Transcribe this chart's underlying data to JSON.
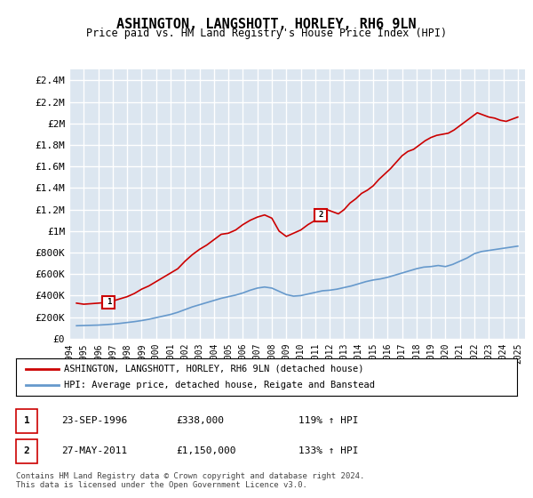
{
  "title": "ASHINGTON, LANGSHOTT, HORLEY, RH6 9LN",
  "subtitle": "Price paid vs. HM Land Registry's House Price Index (HPI)",
  "xlabel": "",
  "ylabel": "",
  "ylim": [
    0,
    2500000
  ],
  "yticks": [
    0,
    200000,
    400000,
    600000,
    800000,
    1000000,
    1200000,
    1400000,
    1600000,
    1800000,
    2000000,
    2200000,
    2400000
  ],
  "ytick_labels": [
    "£0",
    "£200K",
    "£400K",
    "£600K",
    "£800K",
    "£1M",
    "£1.2M",
    "£1.4M",
    "£1.6M",
    "£1.8M",
    "£2M",
    "£2.2M",
    "£2.4M"
  ],
  "xlim_start": 1994.0,
  "xlim_end": 2025.5,
  "bg_color": "#ffffff",
  "plot_bg_color": "#dce6f0",
  "grid_color": "#ffffff",
  "red_line_color": "#cc0000",
  "blue_line_color": "#6699cc",
  "marker1_label": "1",
  "marker2_label": "2",
  "marker1_x": 1996.73,
  "marker1_y": 338000,
  "marker2_x": 2011.4,
  "marker2_y": 1150000,
  "legend_line1": "ASHINGTON, LANGSHOTT, HORLEY, RH6 9LN (detached house)",
  "legend_line2": "HPI: Average price, detached house, Reigate and Banstead",
  "ann1_label": "1",
  "ann1_date": "23-SEP-1996",
  "ann1_price": "£338,000",
  "ann1_hpi": "119% ↑ HPI",
  "ann2_label": "2",
  "ann2_date": "27-MAY-2011",
  "ann2_price": "£1,150,000",
  "ann2_hpi": "133% ↑ HPI",
  "footer": "Contains HM Land Registry data © Crown copyright and database right 2024.\nThis data is licensed under the Open Government Licence v3.0.",
  "red_x": [
    1994.5,
    1995.0,
    1995.5,
    1996.0,
    1996.73,
    1997.5,
    1998.0,
    1998.5,
    1999.0,
    1999.5,
    2000.0,
    2000.5,
    2001.0,
    2001.5,
    2002.0,
    2002.5,
    2003.0,
    2003.5,
    2004.0,
    2004.5,
    2005.0,
    2005.5,
    2006.0,
    2006.5,
    2007.0,
    2007.5,
    2008.0,
    2008.5,
    2009.0,
    2009.5,
    2010.0,
    2010.5,
    2011.0,
    2011.4,
    2011.8,
    2012.2,
    2012.6,
    2013.0,
    2013.4,
    2013.8,
    2014.2,
    2014.6,
    2015.0,
    2015.4,
    2015.8,
    2016.2,
    2016.6,
    2017.0,
    2017.4,
    2017.8,
    2018.2,
    2018.6,
    2019.0,
    2019.4,
    2019.8,
    2020.2,
    2020.6,
    2021.0,
    2021.4,
    2021.8,
    2022.2,
    2022.6,
    2023.0,
    2023.4,
    2023.8,
    2024.2,
    2024.6,
    2025.0
  ],
  "red_y": [
    330000,
    320000,
    325000,
    330000,
    338000,
    370000,
    390000,
    420000,
    460000,
    490000,
    530000,
    570000,
    610000,
    650000,
    720000,
    780000,
    830000,
    870000,
    920000,
    970000,
    980000,
    1010000,
    1060000,
    1100000,
    1130000,
    1150000,
    1120000,
    1000000,
    950000,
    980000,
    1010000,
    1060000,
    1100000,
    1150000,
    1200000,
    1180000,
    1160000,
    1200000,
    1260000,
    1300000,
    1350000,
    1380000,
    1420000,
    1480000,
    1530000,
    1580000,
    1640000,
    1700000,
    1740000,
    1760000,
    1800000,
    1840000,
    1870000,
    1890000,
    1900000,
    1910000,
    1940000,
    1980000,
    2020000,
    2060000,
    2100000,
    2080000,
    2060000,
    2050000,
    2030000,
    2020000,
    2040000,
    2060000
  ],
  "blue_x": [
    1994.5,
    1995.0,
    1995.5,
    1996.0,
    1996.5,
    1997.0,
    1997.5,
    1998.0,
    1998.5,
    1999.0,
    1999.5,
    2000.0,
    2000.5,
    2001.0,
    2001.5,
    2002.0,
    2002.5,
    2003.0,
    2003.5,
    2004.0,
    2004.5,
    2005.0,
    2005.5,
    2006.0,
    2006.5,
    2007.0,
    2007.5,
    2008.0,
    2008.5,
    2009.0,
    2009.5,
    2010.0,
    2010.5,
    2011.0,
    2011.5,
    2012.0,
    2012.5,
    2013.0,
    2013.5,
    2014.0,
    2014.5,
    2015.0,
    2015.5,
    2016.0,
    2016.5,
    2017.0,
    2017.5,
    2018.0,
    2018.5,
    2019.0,
    2019.5,
    2020.0,
    2020.5,
    2021.0,
    2021.5,
    2022.0,
    2022.5,
    2023.0,
    2023.5,
    2024.0,
    2024.5,
    2025.0
  ],
  "blue_y": [
    120000,
    122000,
    124000,
    126000,
    130000,
    135000,
    142000,
    150000,
    158000,
    168000,
    180000,
    195000,
    210000,
    225000,
    245000,
    270000,
    295000,
    315000,
    335000,
    355000,
    375000,
    390000,
    405000,
    425000,
    450000,
    470000,
    480000,
    470000,
    440000,
    410000,
    395000,
    400000,
    415000,
    430000,
    445000,
    450000,
    460000,
    475000,
    490000,
    510000,
    530000,
    545000,
    555000,
    570000,
    590000,
    610000,
    630000,
    650000,
    665000,
    670000,
    680000,
    670000,
    690000,
    720000,
    750000,
    790000,
    810000,
    820000,
    830000,
    840000,
    850000,
    860000
  ]
}
